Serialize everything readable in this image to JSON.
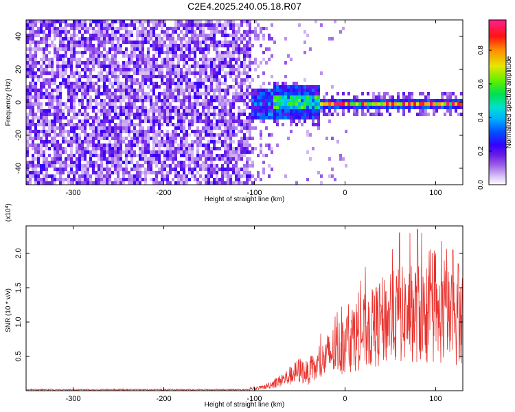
{
  "title": "C2E4.2025.240.05.18.R07",
  "chart_data": [
    {
      "type": "heatmap",
      "id": "spectrogram",
      "xlabel": "Height of straight line (km)",
      "ylabel": "Frequency (Hz)",
      "xlim": [
        -352,
        130
      ],
      "ylim": [
        -50,
        50
      ],
      "xticks": [
        -300,
        -200,
        -100,
        0,
        100
      ],
      "yticks": [
        -40,
        -20,
        0,
        20,
        40
      ],
      "description_regions": [
        {
          "x_range": [
            -352,
            -105
          ],
          "freq_range": [
            -50,
            50
          ],
          "level": "low, broadband noise (~0.15-0.25)"
        },
        {
          "x_range": [
            -105,
            -30
          ],
          "freq_range": [
            -12,
            12
          ],
          "level": "moderate (~0.3-0.5)"
        },
        {
          "x_range": [
            -30,
            130
          ],
          "freq_range": [
            -3,
            4
          ],
          "level": "high, narrow band near 0 Hz (~0.6-0.95)"
        }
      ],
      "colorbar": {
        "label": "Normalized spectral amplitude",
        "range": [
          0.0,
          0.98
        ],
        "ticks": [
          0.0,
          0.2,
          0.4,
          0.6,
          0.8
        ],
        "tick_labels": [
          "0.0",
          "0.2",
          "0.4",
          "0.6",
          "0.8"
        ],
        "colors": [
          "#ffffff",
          "#c9a8f4",
          "#7e33e0",
          "#4000ff",
          "#0044ff",
          "#00d8e0",
          "#00e060",
          "#58f000",
          "#e6e600",
          "#ff8800",
          "#ff1010",
          "#ff1a8c"
        ]
      }
    },
    {
      "type": "line",
      "id": "snr",
      "xlabel": "Height of straight line (km)",
      "ylabel": "SNR (10 * v/v)",
      "y_multiplier": "(x10",
      "y_multiplier_exp": "4",
      "y_multiplier_close": ")",
      "xlim": [
        -352,
        130
      ],
      "ylim": [
        0.0,
        2.4
      ],
      "xticks": [
        -300,
        -200,
        -100,
        0,
        100
      ],
      "yticks": [
        0.5,
        1.0,
        1.5,
        2.0
      ],
      "ytick_labels": [
        "0.5",
        "1.0",
        "1.5",
        "2.0"
      ],
      "color": "#e8332e",
      "series": [
        {
          "name": "SNR",
          "x": [
            -352,
            -300,
            -250,
            -200,
            -150,
            -110,
            -100,
            -90,
            -80,
            -70,
            -60,
            -50,
            -40,
            -30,
            -20,
            -10,
            0,
            10,
            20,
            30,
            40,
            50,
            60,
            70,
            80,
            90,
            100,
            110,
            120,
            130
          ],
          "y": [
            0.01,
            0.01,
            0.01,
            0.01,
            0.01,
            0.02,
            0.03,
            0.05,
            0.1,
            0.15,
            0.22,
            0.3,
            0.25,
            0.35,
            0.5,
            0.6,
            0.7,
            0.8,
            0.85,
            0.9,
            1.0,
            1.05,
            1.1,
            1.1,
            1.15,
            1.05,
            1.0,
            1.1,
            1.05,
            1.0
          ],
          "peaks": [
            [
              60,
              2.3
            ],
            [
              80,
              2.35
            ],
            [
              97,
              2.0
            ],
            [
              119,
              2.05
            ],
            [
              125,
              1.85
            ]
          ]
        }
      ]
    }
  ]
}
